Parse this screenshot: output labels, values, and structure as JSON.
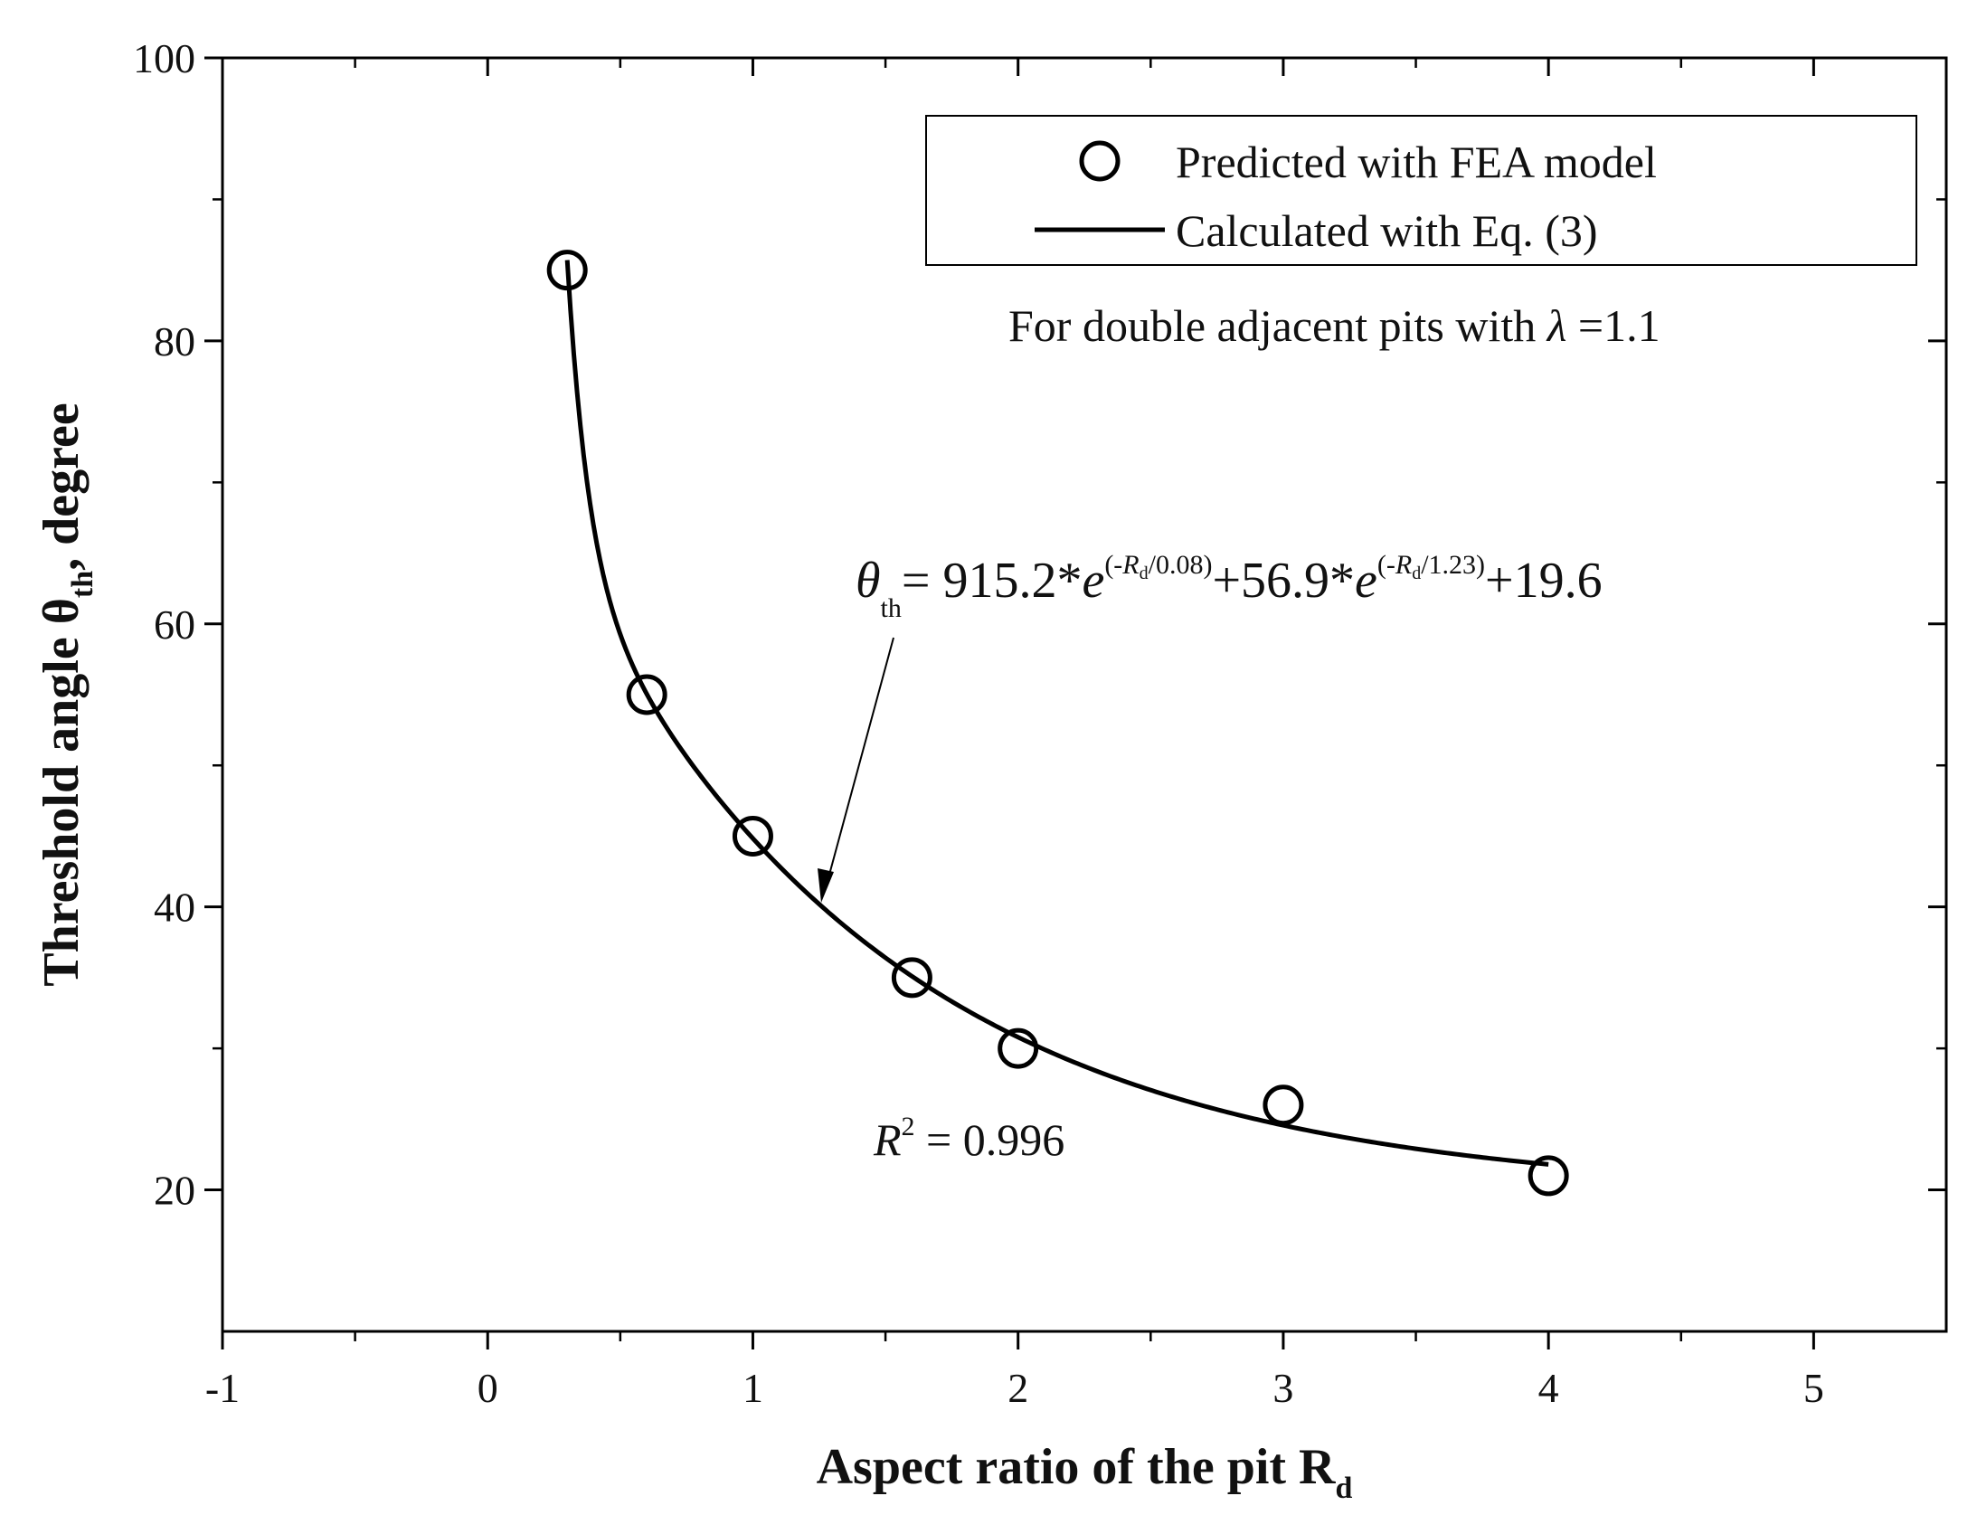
{
  "chart_data": {
    "type": "scatter",
    "xlabel": "Aspect ratio of the pit R",
    "xlabel_sub": "d",
    "ylabel": "Threshold angle θ",
    "ylabel_sub": "th",
    "ylabel_suffix": ", degree",
    "xlim": [
      -1,
      5.5
    ],
    "ylim": [
      10,
      100
    ],
    "xticks": [
      -1,
      0,
      1,
      2,
      3,
      4,
      5
    ],
    "xtick_labels": [
      "-1",
      "0",
      "1",
      "2",
      "3",
      "4",
      "5"
    ],
    "yticks": [
      20,
      40,
      60,
      80,
      100
    ],
    "ytick_labels": [
      "20",
      "40",
      "60",
      "80",
      "100"
    ],
    "grid": false,
    "legend_position": "top-right",
    "series": [
      {
        "name": "Predicted with FEA model",
        "kind": "scatter",
        "marker": "open-circle",
        "x": [
          0.3,
          0.6,
          1.0,
          1.6,
          2.0,
          3.0,
          4.0
        ],
        "y": [
          85,
          55,
          45,
          35,
          30,
          26,
          21
        ]
      },
      {
        "name": "Calculated with Eq. (3)",
        "kind": "line",
        "x_range": [
          0.3,
          4.0
        ],
        "equation_coefficients": {
          "a1": 915.2,
          "t1": 0.08,
          "a2": 56.9,
          "t2": 1.23,
          "c": 19.6
        }
      }
    ],
    "annotations": {
      "condition_prefix": "For double adjacent pits with ",
      "condition_symbol": "λ",
      "condition_suffix": " =1.1",
      "equation_lhs": "θ",
      "equation_lhs_sub": "th",
      "equation_part1": "= 915.2*",
      "equation_e": "e",
      "equation_exp1_pre": "(-",
      "equation_exp1_var": "R",
      "equation_exp1_sub": "d",
      "equation_exp1_post": "/0.08)",
      "equation_part2": "+56.9*",
      "equation_exp2_pre": "(-",
      "equation_exp2_var": "R",
      "equation_exp2_sub": "d",
      "equation_exp2_post": "/1.23)",
      "equation_part3": "+19.6",
      "r2_var": "R",
      "r2_sup": "2",
      "r2_value": " = 0.996"
    }
  },
  "colors": {
    "ink": "#000000",
    "background": "#ffffff"
  }
}
